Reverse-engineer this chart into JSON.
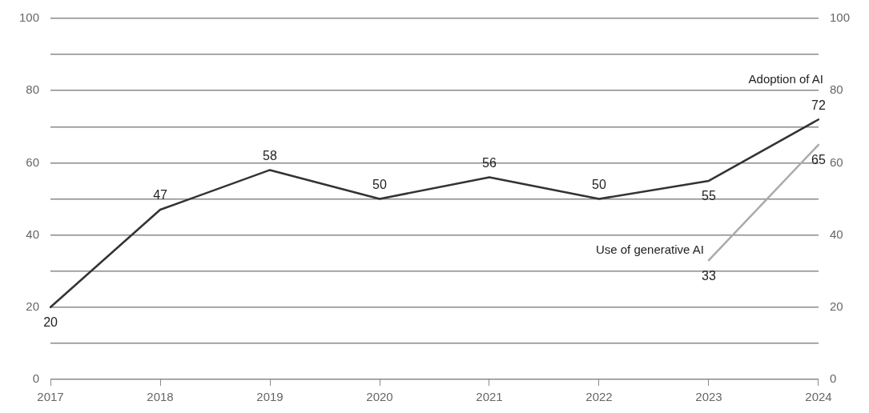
{
  "chart_data": {
    "type": "line",
    "categories": [
      "2017",
      "2018",
      "2019",
      "2020",
      "2021",
      "2022",
      "2023",
      "2024"
    ],
    "series": [
      {
        "name": "Adoption of AI",
        "color": "#333333",
        "values": [
          20,
          47,
          58,
          50,
          56,
          50,
          55,
          72
        ]
      },
      {
        "name": "Use of generative AI",
        "color": "#aaaaaa",
        "values": [
          null,
          null,
          null,
          null,
          null,
          null,
          33,
          65
        ]
      }
    ],
    "ylim": [
      0,
      100
    ],
    "yticks": [
      0,
      {
        "value": 10,
        "label": null
      },
      20,
      {
        "value": 30,
        "label": null
      },
      40,
      {
        "value": 50,
        "label": null
      },
      60,
      {
        "value": 70,
        "label": null
      },
      80,
      {
        "value": 90,
        "label": null
      },
      100
    ],
    "y2lim": [
      0,
      100
    ],
    "y2ticks": [
      0,
      20,
      40,
      60,
      80,
      100
    ],
    "grid": "y",
    "data_labels": true,
    "marker": "none",
    "line_style": "solid",
    "legend": false
  }
}
